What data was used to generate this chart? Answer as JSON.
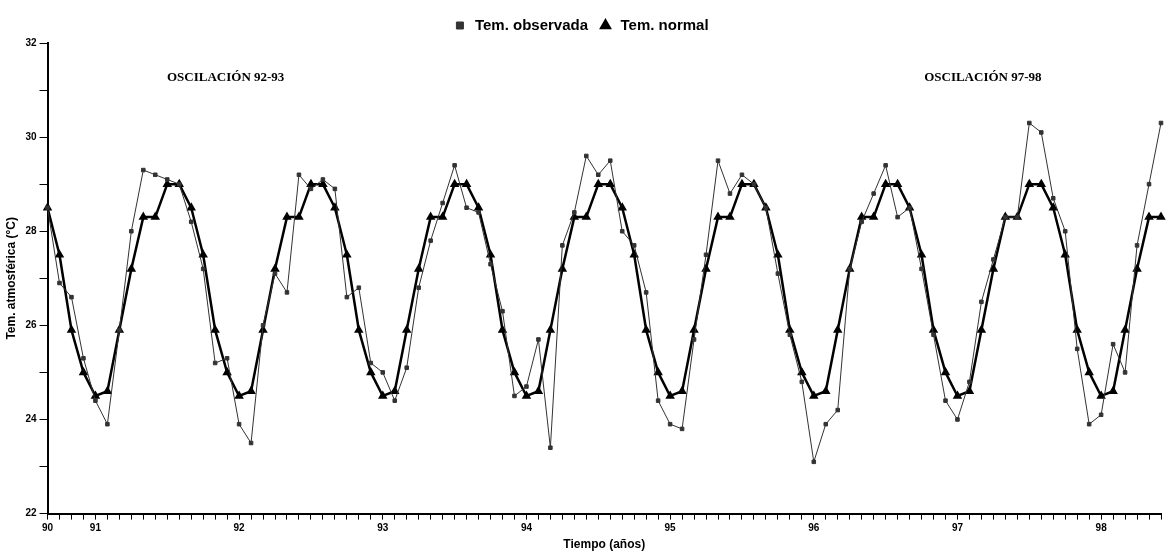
{
  "chart_data": {
    "type": "line",
    "xlabel": "Tiempo (años)",
    "ylabel": "Tem. atmosférica (°C)",
    "categories": [
      "90",
      null,
      null,
      null,
      "91",
      null,
      null,
      null,
      null,
      null,
      null,
      null,
      null,
      null,
      null,
      null,
      "92",
      null,
      null,
      null,
      null,
      null,
      null,
      null,
      null,
      null,
      null,
      null,
      "93",
      null,
      null,
      null,
      null,
      null,
      null,
      null,
      null,
      null,
      null,
      null,
      "94",
      null,
      null,
      null,
      null,
      null,
      null,
      null,
      null,
      null,
      null,
      null,
      "95",
      null,
      null,
      null,
      null,
      null,
      null,
      null,
      null,
      null,
      null,
      null,
      "96",
      null,
      null,
      null,
      null,
      null,
      null,
      null,
      null,
      null,
      null,
      null,
      "97",
      null,
      null,
      null,
      null,
      null,
      null,
      null,
      null,
      null,
      null,
      null,
      "98",
      null,
      null,
      null,
      null,
      null
    ],
    "series": [
      {
        "name": "Tem. observada",
        "color": "#333333",
        "marker": "square",
        "values": [
          28.5,
          26.9,
          26.6,
          25.3,
          24.4,
          23.9,
          25.9,
          28.0,
          29.3,
          29.2,
          29.1,
          29.0,
          28.2,
          27.2,
          25.2,
          25.3,
          23.9,
          23.5,
          26.0,
          27.1,
          26.7,
          29.2,
          28.9,
          29.1,
          28.9,
          26.6,
          26.8,
          25.2,
          25.0,
          24.4,
          25.1,
          26.8,
          27.8,
          28.6,
          29.4,
          28.5,
          28.4,
          27.3,
          26.3,
          24.5,
          24.7,
          25.7,
          23.4,
          27.7,
          28.4,
          29.6,
          29.2,
          29.5,
          28.0,
          27.7,
          26.7,
          24.4,
          23.9,
          23.8,
          25.7,
          27.5,
          29.5,
          28.8,
          29.2,
          29.0,
          28.5,
          27.1,
          25.8,
          24.8,
          23.1,
          23.9,
          24.2,
          27.2,
          28.2,
          28.8,
          29.4,
          28.3,
          28.5,
          27.2,
          25.8,
          24.4,
          24.0,
          24.8,
          26.5,
          27.4,
          28.3,
          28.3,
          30.3,
          30.1,
          28.7,
          28.0,
          25.5,
          23.9,
          24.1,
          25.6,
          25.0,
          27.7,
          29.0,
          30.3
        ]
      },
      {
        "name": "Tem. normal",
        "color": "#000000",
        "marker": "triangle",
        "values": [
          28.5,
          27.5,
          25.9,
          25.0,
          24.5,
          24.6,
          25.9,
          27.2,
          28.3,
          28.3,
          29.0,
          29.0,
          28.5,
          27.5,
          25.9,
          25.0,
          24.5,
          24.6,
          25.9,
          27.2,
          28.3,
          28.3,
          29.0,
          29.0,
          28.5,
          27.5,
          25.9,
          25.0,
          24.5,
          24.6,
          25.9,
          27.2,
          28.3,
          28.3,
          29.0,
          29.0,
          28.5,
          27.5,
          25.9,
          25.0,
          24.5,
          24.6,
          25.9,
          27.2,
          28.3,
          28.3,
          29.0,
          29.0,
          28.5,
          27.5,
          25.9,
          25.0,
          24.5,
          24.6,
          25.9,
          27.2,
          28.3,
          28.3,
          29.0,
          29.0,
          28.5,
          27.5,
          25.9,
          25.0,
          24.5,
          24.6,
          25.9,
          27.2,
          28.3,
          28.3,
          29.0,
          29.0,
          28.5,
          27.5,
          25.9,
          25.0,
          24.5,
          24.6,
          25.9,
          27.2,
          28.3,
          28.3,
          29.0,
          29.0,
          28.5,
          27.5,
          25.9,
          25.0,
          24.5,
          24.6,
          25.9,
          27.2,
          28.3,
          28.3
        ]
      }
    ],
    "ylim": [
      22,
      32
    ],
    "yticks": [
      22,
      {
        "value": 23,
        "label": null
      },
      24,
      {
        "value": 25,
        "label": null
      },
      26,
      {
        "value": 27,
        "label": null
      },
      28,
      {
        "value": 29,
        "label": null
      },
      30,
      {
        "value": 31,
        "label": null
      },
      32
    ],
    "grid": false,
    "legend": "top",
    "line_style": "solid",
    "annotations": [
      "OSCILACIÓN 92-93",
      "OSCILACIÓN 97-98"
    ]
  }
}
